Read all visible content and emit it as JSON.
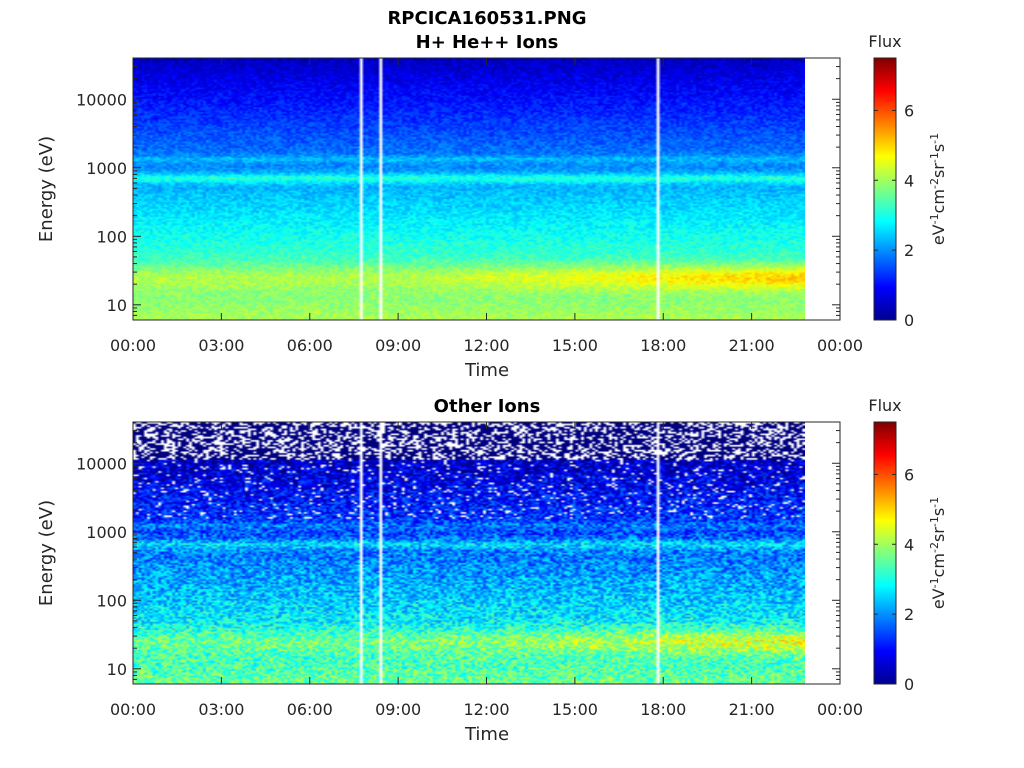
{
  "figure_title": "RPCICA160531.PNG",
  "chart_data": [
    {
      "type": "heatmap",
      "title": "H+ He++ Ions",
      "xlabel": "Time",
      "ylabel": "Energy (eV)",
      "xtick_labels": [
        "00:00",
        "03:00",
        "06:00",
        "09:00",
        "12:00",
        "15:00",
        "18:00",
        "21:00",
        "00:00"
      ],
      "xlim_hours": [
        0,
        24
      ],
      "data_end_hours": 22.7,
      "y_scale": "log",
      "ylim": [
        6,
        40000
      ],
      "ytick_values": [
        10,
        100,
        1000,
        10000
      ],
      "ytick_labels": [
        "10",
        "100",
        "1000",
        "10000"
      ],
      "data_gap_hours": [
        7.7,
        8.35,
        17.7
      ],
      "colorbar": {
        "label_top": "Flux",
        "unit_label": "eV⁻¹cm⁻²sr⁻¹s⁻¹",
        "range": [
          0,
          7.5
        ],
        "ticks": [
          "0",
          "2",
          "4",
          "6"
        ],
        "colormap": "jet"
      },
      "features": {
        "band_energy_eV": 700,
        "low_energy_band_eV": 25
      }
    },
    {
      "type": "heatmap",
      "title": "Other Ions",
      "xlabel": "Time",
      "ylabel": "Energy (eV)",
      "xtick_labels": [
        "00:00",
        "03:00",
        "06:00",
        "09:00",
        "12:00",
        "15:00",
        "18:00",
        "21:00",
        "00:00"
      ],
      "xlim_hours": [
        0,
        24
      ],
      "data_end_hours": 22.7,
      "y_scale": "log",
      "ylim": [
        6,
        40000
      ],
      "ytick_values": [
        10,
        100,
        1000,
        10000
      ],
      "ytick_labels": [
        "10",
        "100",
        "1000",
        "10000"
      ],
      "data_gap_hours": [
        7.7,
        8.35,
        17.7
      ],
      "colorbar": {
        "label_top": "Flux",
        "unit_label": "eV⁻¹cm⁻²sr⁻¹s⁻¹",
        "range": [
          0,
          7.5
        ],
        "ticks": [
          "0",
          "2",
          "4",
          "6"
        ],
        "colormap": "jet"
      },
      "features": {
        "band_energy_eV": 650,
        "low_energy_band_eV": 25
      }
    }
  ]
}
